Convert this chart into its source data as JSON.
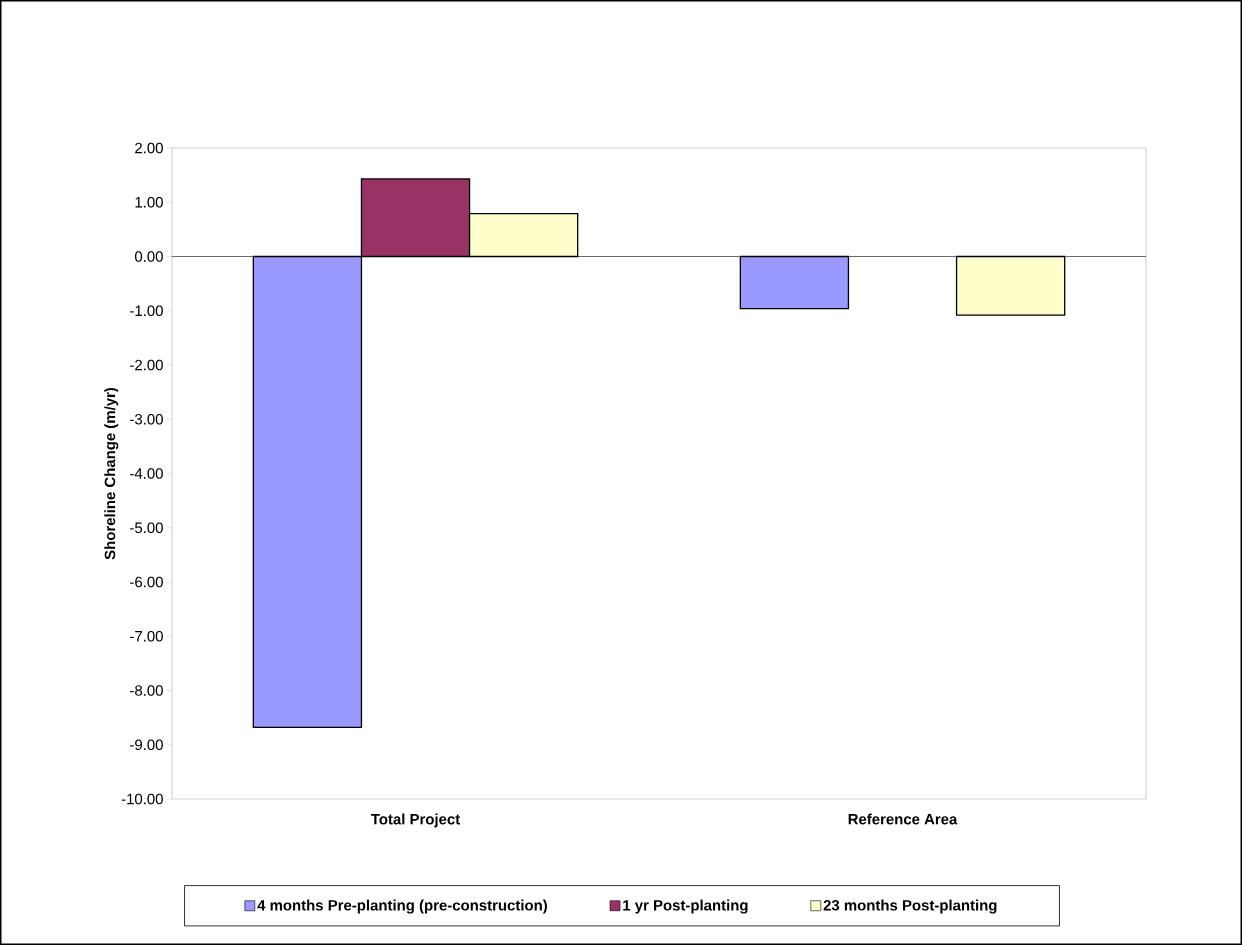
{
  "chart_data": {
    "type": "bar",
    "ylabel": "Shoreline Change (m/yr)",
    "categories": [
      "Total Project",
      "Reference Area"
    ],
    "series": [
      {
        "name": "4 months Pre-planting (pre-construction)",
        "color": "#9999ff",
        "values": [
          -8.68,
          -0.96
        ]
      },
      {
        "name": "1 yr Post-planting",
        "color": "#993366",
        "values": [
          1.43,
          null
        ]
      },
      {
        "name": "23 months Post-planting",
        "color": "#ffffcc",
        "values": [
          0.79,
          -1.08
        ]
      }
    ],
    "ylim": [
      -10,
      2
    ],
    "yticks": [
      {
        "value": -10,
        "label": "-10.00"
      },
      {
        "value": -9,
        "label": "-9.00"
      },
      {
        "value": -8,
        "label": "-8.00"
      },
      {
        "value": -7,
        "label": "-7.00"
      },
      {
        "value": -6,
        "label": "-6.00"
      },
      {
        "value": -5,
        "label": "-5.00"
      },
      {
        "value": -4,
        "label": "-4.00"
      },
      {
        "value": -3,
        "label": "-3.00"
      },
      {
        "value": -2,
        "label": "-2.00"
      },
      {
        "value": -1,
        "label": "-1.00"
      },
      {
        "value": 0,
        "label": "0.00"
      },
      {
        "value": 1,
        "label": "1.00"
      },
      {
        "value": 2,
        "label": "2.00"
      }
    ],
    "ref_lines": [
      {
        "axis": "y",
        "value": 0,
        "color": "#000000"
      }
    ],
    "grid": false,
    "legend": "bottom"
  }
}
